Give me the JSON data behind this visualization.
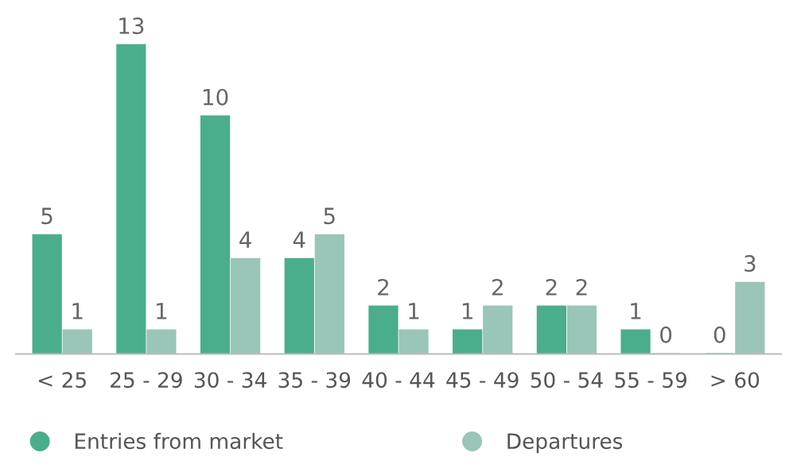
{
  "chart_data": {
    "type": "bar",
    "categories": [
      "< 25",
      "25 - 29",
      "30 - 34",
      "35 - 39",
      "40 - 44",
      "45 - 49",
      "50 - 54",
      "55 - 59",
      "> 60"
    ],
    "series": [
      {
        "name": "Entries from market",
        "color": "#4aae8c",
        "values": [
          5,
          13,
          10,
          4,
          2,
          1,
          2,
          1,
          0
        ]
      },
      {
        "name": "Departures",
        "color": "#9ac5b9",
        "values": [
          1,
          1,
          4,
          5,
          1,
          2,
          2,
          0,
          3
        ]
      }
    ],
    "data_labels": true,
    "legend": "bottom left",
    "grid": false
  }
}
